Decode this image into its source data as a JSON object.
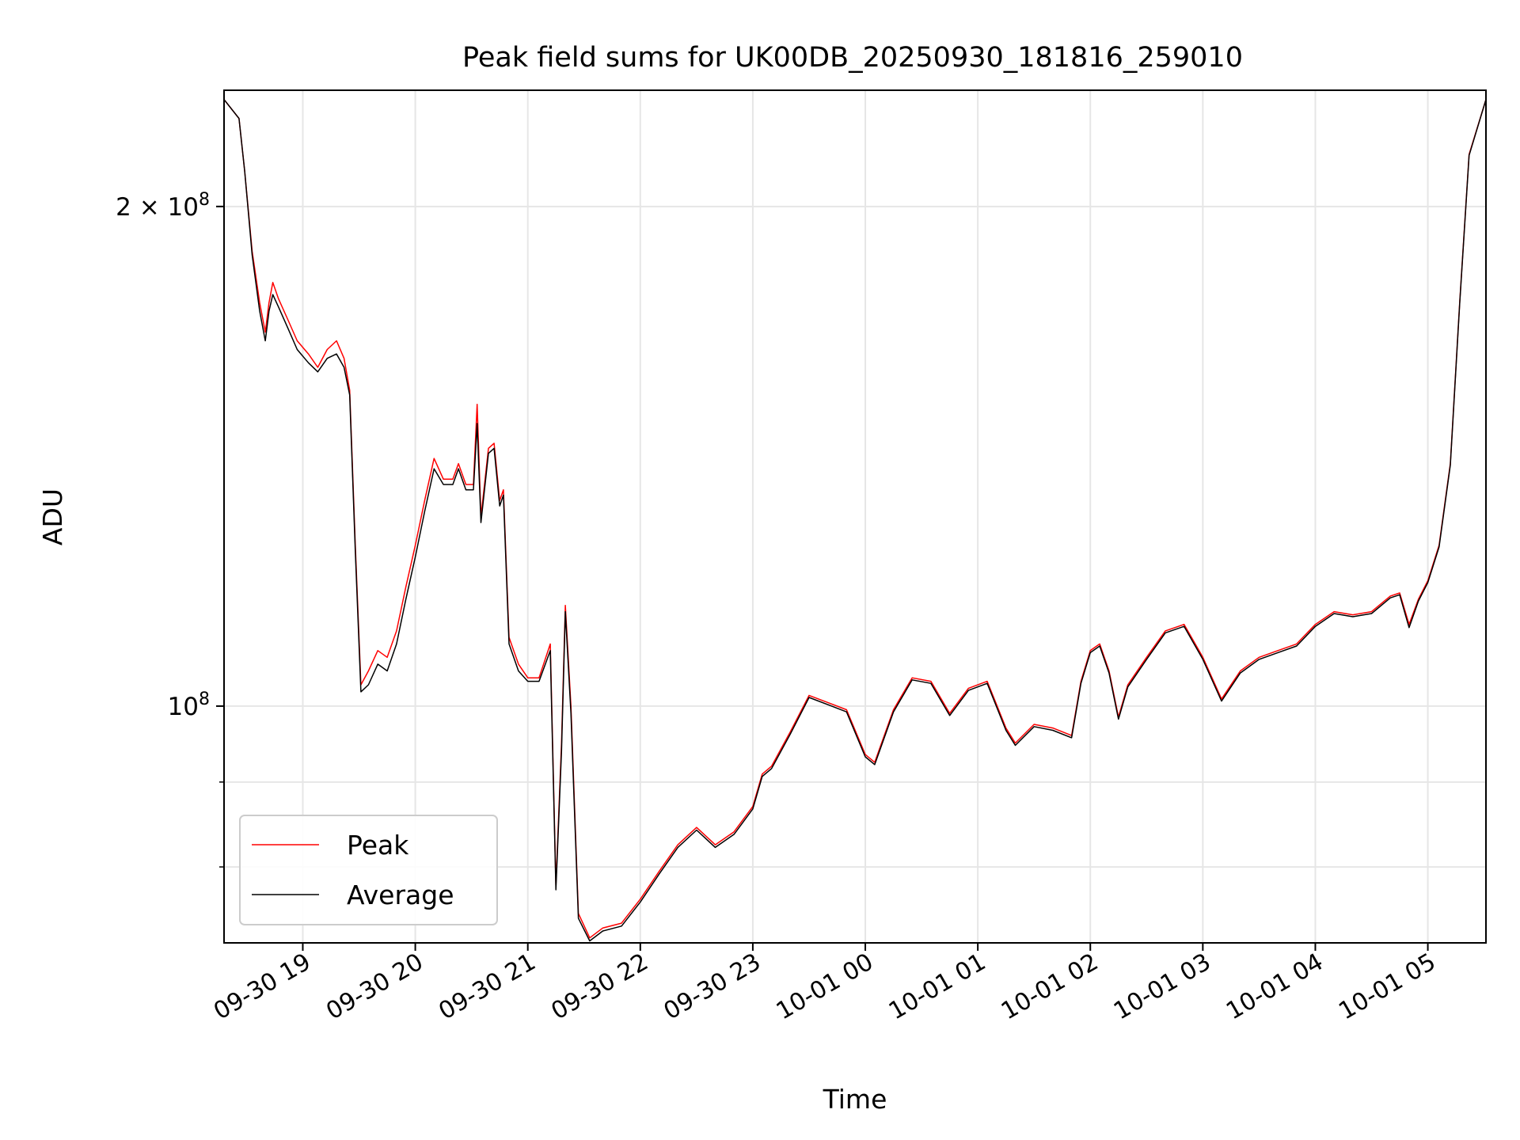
{
  "chart_data": {
    "type": "line",
    "title": "Peak field sums for UK00DB_20250930_181816_259010",
    "xlabel": "Time",
    "ylabel": "ADU",
    "yscale": "log",
    "ylim": [
      72000000,
      235000000
    ],
    "xlim": [
      "2025-09-30 18:18",
      "2025-10-01 05:31"
    ],
    "grid": true,
    "legend_position": "lower-left",
    "x_ticks": [
      "09-30 19",
      "09-30 20",
      "09-30 21",
      "09-30 22",
      "09-30 23",
      "10-01 00",
      "10-01 01",
      "10-01 02",
      "10-01 03",
      "10-01 04",
      "10-01 05"
    ],
    "y_ticks": [
      {
        "value": 100000000,
        "base": "10",
        "exp": "8",
        "prefix": ""
      },
      {
        "value": 200000000,
        "base": "10",
        "exp": "8",
        "prefix": "2 × "
      }
    ],
    "y_minor_ticks": [
      80000000,
      90000000
    ],
    "series": [
      {
        "name": "Peak",
        "color": "#ff0000",
        "points": [
          [
            "2025-09-30 18:18",
            232000000
          ],
          [
            "2025-09-30 18:26",
            226000000
          ],
          [
            "2025-09-30 18:29",
            210000000
          ],
          [
            "2025-09-30 18:33",
            188000000
          ],
          [
            "2025-09-30 18:37",
            175000000
          ],
          [
            "2025-09-30 18:40",
            168000000
          ],
          [
            "2025-09-30 18:42",
            175000000
          ],
          [
            "2025-09-30 18:44",
            180000000
          ],
          [
            "2025-09-30 18:47",
            176000000
          ],
          [
            "2025-09-30 18:52",
            171000000
          ],
          [
            "2025-09-30 18:57",
            166000000
          ],
          [
            "2025-09-30 19:03",
            163000000
          ],
          [
            "2025-09-30 19:08",
            160000000
          ],
          [
            "2025-09-30 19:13",
            164000000
          ],
          [
            "2025-09-30 19:18",
            166000000
          ],
          [
            "2025-09-30 19:22",
            162000000
          ],
          [
            "2025-09-30 19:25",
            155000000
          ],
          [
            "2025-09-30 19:28",
            125000000
          ],
          [
            "2025-09-30 19:31",
            103000000
          ],
          [
            "2025-09-30 19:35",
            105000000
          ],
          [
            "2025-09-30 19:40",
            108000000
          ],
          [
            "2025-09-30 19:45",
            107000000
          ],
          [
            "2025-09-30 19:50",
            111000000
          ],
          [
            "2025-09-30 19:55",
            118000000
          ],
          [
            "2025-09-30 20:00",
            125000000
          ],
          [
            "2025-09-30 20:05",
            133000000
          ],
          [
            "2025-09-30 20:10",
            141000000
          ],
          [
            "2025-09-30 20:15",
            137000000
          ],
          [
            "2025-09-30 20:20",
            137000000
          ],
          [
            "2025-09-30 20:23",
            140000000
          ],
          [
            "2025-09-30 20:27",
            136000000
          ],
          [
            "2025-09-30 20:31",
            136000000
          ],
          [
            "2025-09-30 20:33",
            152000000
          ],
          [
            "2025-09-30 20:35",
            130000000
          ],
          [
            "2025-09-30 20:39",
            143000000
          ],
          [
            "2025-09-30 20:42",
            144000000
          ],
          [
            "2025-09-30 20:45",
            133000000
          ],
          [
            "2025-09-30 20:47",
            135000000
          ],
          [
            "2025-09-30 20:50",
            110000000
          ],
          [
            "2025-09-30 20:55",
            106000000
          ],
          [
            "2025-09-30 21:00",
            104000000
          ],
          [
            "2025-09-30 21:06",
            104000000
          ],
          [
            "2025-09-30 21:12",
            109000000
          ],
          [
            "2025-09-30 21:15",
            78000000
          ],
          [
            "2025-09-30 21:18",
            95000000
          ],
          [
            "2025-09-30 21:20",
            115000000
          ],
          [
            "2025-09-30 21:23",
            100000000
          ],
          [
            "2025-09-30 21:27",
            75000000
          ],
          [
            "2025-09-30 21:33",
            72500000
          ],
          [
            "2025-09-30 21:40",
            73500000
          ],
          [
            "2025-09-30 21:50",
            74000000
          ],
          [
            "2025-09-30 22:00",
            76500000
          ],
          [
            "2025-09-30 22:10",
            79500000
          ],
          [
            "2025-09-30 22:20",
            82500000
          ],
          [
            "2025-09-30 22:30",
            84500000
          ],
          [
            "2025-09-30 22:40",
            82500000
          ],
          [
            "2025-09-30 22:50",
            84000000
          ],
          [
            "2025-09-30 23:00",
            87000000
          ],
          [
            "2025-09-30 23:05",
            91000000
          ],
          [
            "2025-09-30 23:10",
            92000000
          ],
          [
            "2025-09-30 23:20",
            96500000
          ],
          [
            "2025-09-30 23:30",
            101500000
          ],
          [
            "2025-09-30 23:40",
            100500000
          ],
          [
            "2025-09-30 23:50",
            99500000
          ],
          [
            "2025-10-01 00:00",
            93500000
          ],
          [
            "2025-10-01 00:05",
            92500000
          ],
          [
            "2025-10-01 00:15",
            99500000
          ],
          [
            "2025-10-01 00:25",
            104000000
          ],
          [
            "2025-10-01 00:35",
            103500000
          ],
          [
            "2025-10-01 00:45",
            99000000
          ],
          [
            "2025-10-01 00:55",
            102500000
          ],
          [
            "2025-10-01 01:05",
            103500000
          ],
          [
            "2025-10-01 01:15",
            97000000
          ],
          [
            "2025-10-01 01:20",
            95000000
          ],
          [
            "2025-10-01 01:30",
            97500000
          ],
          [
            "2025-10-01 01:40",
            97000000
          ],
          [
            "2025-10-01 01:50",
            96000000
          ],
          [
            "2025-10-01 01:55",
            103500000
          ],
          [
            "2025-10-01 02:00",
            108000000
          ],
          [
            "2025-10-01 02:05",
            109000000
          ],
          [
            "2025-10-01 02:10",
            105000000
          ],
          [
            "2025-10-01 02:15",
            98500000
          ],
          [
            "2025-10-01 02:20",
            103000000
          ],
          [
            "2025-10-01 02:30",
            107000000
          ],
          [
            "2025-10-01 02:40",
            111000000
          ],
          [
            "2025-10-01 02:50",
            112000000
          ],
          [
            "2025-10-01 03:00",
            107000000
          ],
          [
            "2025-10-01 03:10",
            101000000
          ],
          [
            "2025-10-01 03:20",
            105000000
          ],
          [
            "2025-10-01 03:30",
            107000000
          ],
          [
            "2025-10-01 03:40",
            108000000
          ],
          [
            "2025-10-01 03:50",
            109000000
          ],
          [
            "2025-10-01 04:00",
            112000000
          ],
          [
            "2025-10-01 04:10",
            114000000
          ],
          [
            "2025-10-01 04:20",
            113500000
          ],
          [
            "2025-10-01 04:30",
            114000000
          ],
          [
            "2025-10-01 04:40",
            116500000
          ],
          [
            "2025-10-01 04:45",
            117000000
          ],
          [
            "2025-10-01 04:50",
            112000000
          ],
          [
            "2025-10-01 04:55",
            116000000
          ],
          [
            "2025-10-01 05:00",
            119000000
          ],
          [
            "2025-10-01 05:06",
            125000000
          ],
          [
            "2025-10-01 05:12",
            140000000
          ],
          [
            "2025-10-01 05:17",
            175000000
          ],
          [
            "2025-10-01 05:22",
            215000000
          ],
          [
            "2025-10-01 05:31",
            232000000
          ]
        ]
      },
      {
        "name": "Average",
        "color": "#000000",
        "points": [
          [
            "2025-09-30 18:18",
            232000000
          ],
          [
            "2025-09-30 18:26",
            226000000
          ],
          [
            "2025-09-30 18:29",
            210000000
          ],
          [
            "2025-09-30 18:33",
            187000000
          ],
          [
            "2025-09-30 18:37",
            173000000
          ],
          [
            "2025-09-30 18:40",
            166000000
          ],
          [
            "2025-09-30 18:42",
            173000000
          ],
          [
            "2025-09-30 18:44",
            177000000
          ],
          [
            "2025-09-30 18:47",
            174000000
          ],
          [
            "2025-09-30 18:52",
            169000000
          ],
          [
            "2025-09-30 18:57",
            164000000
          ],
          [
            "2025-09-30 19:03",
            161000000
          ],
          [
            "2025-09-30 19:08",
            159000000
          ],
          [
            "2025-09-30 19:13",
            162000000
          ],
          [
            "2025-09-30 19:18",
            163000000
          ],
          [
            "2025-09-30 19:22",
            160000000
          ],
          [
            "2025-09-30 19:25",
            154000000
          ],
          [
            "2025-09-30 19:28",
            124000000
          ],
          [
            "2025-09-30 19:31",
            102000000
          ],
          [
            "2025-09-30 19:35",
            103000000
          ],
          [
            "2025-09-30 19:40",
            106000000
          ],
          [
            "2025-09-30 19:45",
            105000000
          ],
          [
            "2025-09-30 19:50",
            109000000
          ],
          [
            "2025-09-30 19:55",
            116000000
          ],
          [
            "2025-09-30 20:00",
            123000000
          ],
          [
            "2025-09-30 20:05",
            131000000
          ],
          [
            "2025-09-30 20:10",
            139000000
          ],
          [
            "2025-09-30 20:15",
            136000000
          ],
          [
            "2025-09-30 20:20",
            136000000
          ],
          [
            "2025-09-30 20:23",
            139000000
          ],
          [
            "2025-09-30 20:27",
            135000000
          ],
          [
            "2025-09-30 20:31",
            135000000
          ],
          [
            "2025-09-30 20:33",
            148000000
          ],
          [
            "2025-09-30 20:35",
            129000000
          ],
          [
            "2025-09-30 20:39",
            142000000
          ],
          [
            "2025-09-30 20:42",
            143000000
          ],
          [
            "2025-09-30 20:45",
            132000000
          ],
          [
            "2025-09-30 20:47",
            134000000
          ],
          [
            "2025-09-30 20:50",
            109000000
          ],
          [
            "2025-09-30 20:55",
            105000000
          ],
          [
            "2025-09-30 21:00",
            103500000
          ],
          [
            "2025-09-30 21:06",
            103500000
          ],
          [
            "2025-09-30 21:12",
            108000000
          ],
          [
            "2025-09-30 21:15",
            77500000
          ],
          [
            "2025-09-30 21:18",
            94000000
          ],
          [
            "2025-09-30 21:20",
            114000000
          ],
          [
            "2025-09-30 21:23",
            99000000
          ],
          [
            "2025-09-30 21:27",
            74500000
          ],
          [
            "2025-09-30 21:33",
            72200000
          ],
          [
            "2025-09-30 21:40",
            73200000
          ],
          [
            "2025-09-30 21:50",
            73700000
          ],
          [
            "2025-09-30 22:00",
            76200000
          ],
          [
            "2025-09-30 22:10",
            79200000
          ],
          [
            "2025-09-30 22:20",
            82200000
          ],
          [
            "2025-09-30 22:30",
            84200000
          ],
          [
            "2025-09-30 22:40",
            82200000
          ],
          [
            "2025-09-30 22:50",
            83700000
          ],
          [
            "2025-09-30 23:00",
            86700000
          ],
          [
            "2025-09-30 23:05",
            90700000
          ],
          [
            "2025-09-30 23:10",
            91700000
          ],
          [
            "2025-09-30 23:20",
            96200000
          ],
          [
            "2025-09-30 23:30",
            101200000
          ],
          [
            "2025-09-30 23:40",
            100200000
          ],
          [
            "2025-09-30 23:50",
            99200000
          ],
          [
            "2025-10-01 00:00",
            93200000
          ],
          [
            "2025-10-01 00:05",
            92200000
          ],
          [
            "2025-10-01 00:15",
            99200000
          ],
          [
            "2025-10-01 00:25",
            103700000
          ],
          [
            "2025-10-01 00:35",
            103200000
          ],
          [
            "2025-10-01 00:45",
            98700000
          ],
          [
            "2025-10-01 00:55",
            102200000
          ],
          [
            "2025-10-01 01:05",
            103200000
          ],
          [
            "2025-10-01 01:15",
            96700000
          ],
          [
            "2025-10-01 01:20",
            94700000
          ],
          [
            "2025-10-01 01:30",
            97200000
          ],
          [
            "2025-10-01 01:40",
            96700000
          ],
          [
            "2025-10-01 01:50",
            95700000
          ],
          [
            "2025-10-01 01:55",
            103200000
          ],
          [
            "2025-10-01 02:00",
            107700000
          ],
          [
            "2025-10-01 02:05",
            108700000
          ],
          [
            "2025-10-01 02:10",
            104700000
          ],
          [
            "2025-10-01 02:15",
            98200000
          ],
          [
            "2025-10-01 02:20",
            102700000
          ],
          [
            "2025-10-01 02:30",
            106700000
          ],
          [
            "2025-10-01 02:40",
            110700000
          ],
          [
            "2025-10-01 02:50",
            111700000
          ],
          [
            "2025-10-01 03:00",
            106700000
          ],
          [
            "2025-10-01 03:10",
            100700000
          ],
          [
            "2025-10-01 03:20",
            104700000
          ],
          [
            "2025-10-01 03:30",
            106700000
          ],
          [
            "2025-10-01 03:40",
            107700000
          ],
          [
            "2025-10-01 03:50",
            108700000
          ],
          [
            "2025-10-01 04:00",
            111700000
          ],
          [
            "2025-10-01 04:10",
            113700000
          ],
          [
            "2025-10-01 04:20",
            113200000
          ],
          [
            "2025-10-01 04:30",
            113700000
          ],
          [
            "2025-10-01 04:40",
            116200000
          ],
          [
            "2025-10-01 04:45",
            116700000
          ],
          [
            "2025-10-01 04:50",
            111500000
          ],
          [
            "2025-10-01 04:55",
            115700000
          ],
          [
            "2025-10-01 05:00",
            118700000
          ],
          [
            "2025-10-01 05:06",
            124700000
          ],
          [
            "2025-10-01 05:12",
            139700000
          ],
          [
            "2025-10-01 05:17",
            174700000
          ],
          [
            "2025-10-01 05:22",
            214700000
          ],
          [
            "2025-10-01 05:31",
            232000000
          ]
        ]
      }
    ]
  }
}
